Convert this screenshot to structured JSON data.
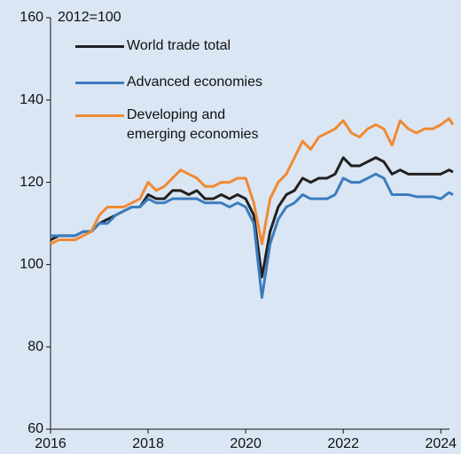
{
  "chart_data": {
    "type": "line",
    "annotations": [
      "2012=100"
    ],
    "x": [
      2016,
      2016.167,
      2016.333,
      2016.5,
      2016.667,
      2016.833,
      2017,
      2017.167,
      2017.333,
      2017.5,
      2017.667,
      2017.833,
      2018,
      2018.167,
      2018.333,
      2018.5,
      2018.667,
      2018.833,
      2019,
      2019.167,
      2019.333,
      2019.5,
      2019.667,
      2019.833,
      2020,
      2020.167,
      2020.333,
      2020.5,
      2020.667,
      2020.833,
      2021,
      2021.167,
      2021.333,
      2021.5,
      2021.667,
      2021.833,
      2022,
      2022.167,
      2022.333,
      2022.5,
      2022.667,
      2022.833,
      2023,
      2023.167,
      2023.333,
      2023.5,
      2023.667,
      2023.833,
      2024,
      2024.167,
      2024.25
    ],
    "series": [
      {
        "name": "World trade total",
        "color": "#231f20",
        "values": [
          106,
          107,
          107,
          107,
          108,
          108,
          110,
          111,
          112,
          113,
          114,
          114,
          117,
          116,
          116,
          118,
          118,
          117,
          118,
          116,
          116,
          117,
          116,
          117,
          116,
          112,
          97,
          108,
          114,
          117,
          118,
          121,
          120,
          121,
          121,
          122,
          126,
          124,
          124,
          125,
          126,
          125,
          122,
          123,
          122,
          122,
          122,
          122,
          122,
          123,
          122.5
        ]
      },
      {
        "name": "Advanced economies",
        "color": "#3a7dbd",
        "values": [
          107,
          107,
          107,
          107,
          108,
          108,
          110,
          110,
          112,
          113,
          114,
          114,
          116,
          115,
          115,
          116,
          116,
          116,
          116,
          115,
          115,
          115,
          114,
          115,
          114,
          110,
          92,
          105,
          111,
          114,
          115,
          117,
          116,
          116,
          116,
          117,
          121,
          120,
          120,
          121,
          122,
          121,
          117,
          117,
          117,
          116.5,
          116.5,
          116.5,
          116,
          117.5,
          117
        ]
      },
      {
        "name": "Developing and emerging economies",
        "color": "#f08a32",
        "values": [
          105,
          106,
          106,
          106,
          107,
          108,
          112,
          114,
          114,
          114,
          115,
          116,
          120,
          118,
          119,
          121,
          123,
          122,
          121,
          119,
          119,
          120,
          120,
          121,
          121,
          115,
          105,
          116,
          120,
          122,
          126,
          130,
          128,
          131,
          132,
          133,
          135,
          132,
          131,
          133,
          134,
          133,
          129,
          135,
          133,
          132,
          133,
          133,
          134,
          135.5,
          134
        ]
      }
    ],
    "xlim": [
      2016,
      2024.25
    ],
    "xticks": [
      2016,
      2018,
      2020,
      2022,
      2024
    ],
    "ylim": [
      60,
      160
    ],
    "yticks": [
      60,
      80,
      100,
      120,
      140,
      160
    ],
    "grid": false
  }
}
